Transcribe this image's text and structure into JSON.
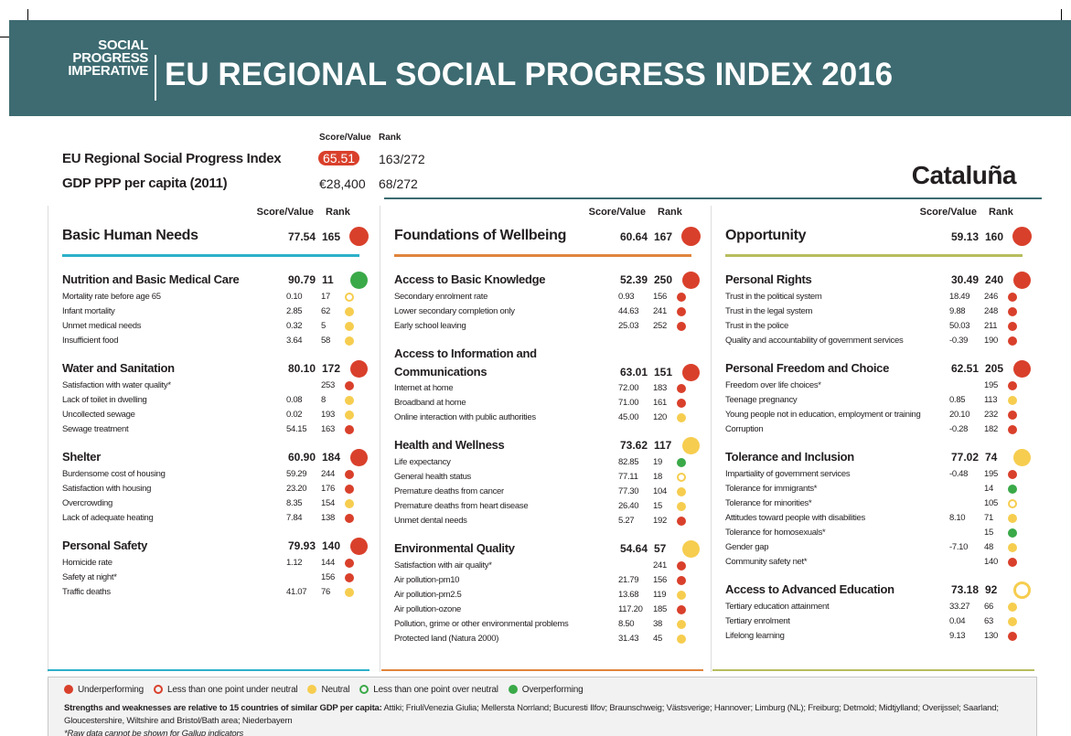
{
  "header": {
    "logo": [
      "SOCIAL",
      "PROGRESS",
      "IMPERATIVE"
    ],
    "title": "EU REGIONAL SOCIAL PROGRESS INDEX 2016"
  },
  "summary": {
    "score_label": "Score/Value",
    "rank_label": "Rank",
    "rows": [
      {
        "label": "EU Regional Social Progress Index",
        "score": "65.51",
        "rank": "163/272"
      },
      {
        "label": "GDP PPP per capita (2011)",
        "score": "€28,400",
        "rank": "68/272"
      }
    ],
    "region": "Cataluña"
  },
  "dimensions": [
    {
      "score_label": "Score/Value",
      "rank_label": "Rank",
      "name": "Basic Human Needs",
      "score": "77.54",
      "rank": "165",
      "status": "under",
      "color": "#2bb0c9",
      "components": [
        {
          "name": "Nutrition and Basic Medical Care",
          "score": "90.79",
          "rank": "11",
          "status": "over",
          "indicators": [
            {
              "name": "Mortality rate before age 65",
              "value": "0.10",
              "rank": "17",
              "status": "weak"
            },
            {
              "name": "Infant mortality",
              "value": "2.85",
              "rank": "62",
              "status": "neutral"
            },
            {
              "name": "Unmet medical needs",
              "value": "0.32",
              "rank": "5",
              "status": "neutral"
            },
            {
              "name": "Insufficient food",
              "value": "3.64",
              "rank": "58",
              "status": "neutral"
            }
          ]
        },
        {
          "name": "Water and Sanitation",
          "score": "80.10",
          "rank": "172",
          "status": "under",
          "indicators": [
            {
              "name": "Satisfaction with water quality*",
              "value": null,
              "rank": "253",
              "status": "under"
            },
            {
              "name": "Lack of toilet in dwelling",
              "value": "0.08",
              "rank": "8",
              "status": "neutral"
            },
            {
              "name": "Uncollected sewage",
              "value": "0.02",
              "rank": "193",
              "status": "neutral"
            },
            {
              "name": "Sewage treatment",
              "value": "54.15",
              "rank": "163",
              "status": "under"
            }
          ]
        },
        {
          "name": "Shelter",
          "score": "60.90",
          "rank": "184",
          "status": "under",
          "indicators": [
            {
              "name": "Burdensome cost of housing",
              "value": "59.29",
              "rank": "244",
              "status": "under"
            },
            {
              "name": "Satisfaction with housing",
              "value": "23.20",
              "rank": "176",
              "status": "under"
            },
            {
              "name": "Overcrowding",
              "value": "8.35",
              "rank": "154",
              "status": "neutral"
            },
            {
              "name": "Lack of adequate heating",
              "value": "7.84",
              "rank": "138",
              "status": "under"
            }
          ]
        },
        {
          "name": "Personal Safety",
          "score": "79.93",
          "rank": "140",
          "status": "under",
          "indicators": [
            {
              "name": "Homicide rate",
              "value": "1.12",
              "rank": "144",
              "status": "under"
            },
            {
              "name": "Safety at night*",
              "value": null,
              "rank": "156",
              "status": "under"
            },
            {
              "name": "Traffic deaths",
              "value": "41.07",
              "rank": "76",
              "status": "neutral"
            }
          ]
        }
      ]
    },
    {
      "score_label": "Score/Value",
      "rank_label": "Rank",
      "name": "Foundations of Wellbeing",
      "score": "60.64",
      "rank": "167",
      "status": "under",
      "color": "#e0843c",
      "components": [
        {
          "name": "Access to Basic Knowledge",
          "score": "52.39",
          "rank": "250",
          "status": "under",
          "indicators": [
            {
              "name": "Secondary enrolment rate",
              "value": "0.93",
              "rank": "156",
              "status": "under"
            },
            {
              "name": "Lower secondary completion only",
              "value": "44.63",
              "rank": "241",
              "status": "under"
            },
            {
              "name": "Early school leaving",
              "value": "25.03",
              "rank": "252",
              "status": "under"
            }
          ]
        },
        {
          "name": "Access to Information and Communications",
          "score": "63.01",
          "rank": "151",
          "status": "under",
          "indicators": [
            {
              "name": "Internet at home",
              "value": "72.00",
              "rank": "183",
              "status": "under"
            },
            {
              "name": "Broadband at home",
              "value": "71.00",
              "rank": "161",
              "status": "under"
            },
            {
              "name": "Online interaction with public authorities",
              "value": "45.00",
              "rank": "120",
              "status": "neutral"
            }
          ]
        },
        {
          "name": "Health and Wellness",
          "score": "73.62",
          "rank": "117",
          "status": "neutral",
          "indicators": [
            {
              "name": "Life expectancy",
              "value": "82.85",
              "rank": "19",
              "status": "over"
            },
            {
              "name": "General health status",
              "value": "77.11",
              "rank": "18",
              "status": "weak"
            },
            {
              "name": "Premature deaths from cancer",
              "value": "77.30",
              "rank": "104",
              "status": "neutral"
            },
            {
              "name": "Premature deaths from heart disease",
              "value": "26.40",
              "rank": "15",
              "status": "neutral"
            },
            {
              "name": "Unmet dental needs",
              "value": "5.27",
              "rank": "192",
              "status": "under"
            }
          ]
        },
        {
          "name": "Environmental Quality",
          "score": "54.64",
          "rank": "57",
          "status": "neutral",
          "indicators": [
            {
              "name": "Satisfaction with air quality*",
              "value": null,
              "rank": "241",
              "status": "under"
            },
            {
              "name": "Air pollution-pm10",
              "value": "21.79",
              "rank": "156",
              "status": "under"
            },
            {
              "name": "Air pollution-pm2.5",
              "value": "13.68",
              "rank": "119",
              "status": "neutral"
            },
            {
              "name": "Air pollution-ozone",
              "value": "117.20",
              "rank": "185",
              "status": "under"
            },
            {
              "name": "Pollution, grime or other environmental problems",
              "value": "8.50",
              "rank": "38",
              "status": "neutral"
            },
            {
              "name": "Protected land (Natura 2000)",
              "value": "31.43",
              "rank": "45",
              "status": "neutral"
            }
          ]
        }
      ]
    },
    {
      "score_label": "Score/Value",
      "rank_label": "Rank",
      "name": "Opportunity",
      "score": "59.13",
      "rank": "160",
      "status": "under",
      "color": "#b7bd5e",
      "components": [
        {
          "name": "Personal Rights",
          "score": "30.49",
          "rank": "240",
          "status": "under",
          "indicators": [
            {
              "name": "Trust in the political system",
              "value": "18.49",
              "rank": "246",
              "status": "under"
            },
            {
              "name": "Trust in the legal system",
              "value": "9.88",
              "rank": "248",
              "status": "under"
            },
            {
              "name": "Trust in the police",
              "value": "50.03",
              "rank": "211",
              "status": "under"
            },
            {
              "name": "Quality and accountability of government services",
              "value": "-0.39",
              "rank": "190",
              "status": "under"
            }
          ]
        },
        {
          "name": "Personal Freedom and Choice",
          "score": "62.51",
          "rank": "205",
          "status": "under",
          "indicators": [
            {
              "name": "Freedom over life choices*",
              "value": null,
              "rank": "195",
              "status": "under"
            },
            {
              "name": "Teenage pregnancy",
              "value": "0.85",
              "rank": "113",
              "status": "neutral"
            },
            {
              "name": "Young people not in education, employment or training",
              "value": "20.10",
              "rank": "232",
              "status": "under"
            },
            {
              "name": "Corruption",
              "value": "-0.28",
              "rank": "182",
              "status": "under"
            }
          ]
        },
        {
          "name": "Tolerance and Inclusion",
          "score": "77.02",
          "rank": "74",
          "status": "neutral",
          "indicators": [
            {
              "name": "Impartiality of government services",
              "value": "-0.48",
              "rank": "195",
              "status": "under"
            },
            {
              "name": "Tolerance for immigrants*",
              "value": null,
              "rank": "14",
              "status": "over"
            },
            {
              "name": "Tolerance for minorities*",
              "value": null,
              "rank": "105",
              "status": "weak"
            },
            {
              "name": "Attitudes toward people with disabilities",
              "value": "8.10",
              "rank": "71",
              "status": "neutral"
            },
            {
              "name": "Tolerance for homosexuals*",
              "value": null,
              "rank": "15",
              "status": "over"
            },
            {
              "name": "Gender gap",
              "value": "-7.10",
              "rank": "48",
              "status": "neutral"
            },
            {
              "name": "Community safety net*",
              "value": null,
              "rank": "140",
              "status": "under"
            }
          ]
        },
        {
          "name": "Access to Advanced Education",
          "score": "73.18",
          "rank": "92",
          "status": "weak",
          "indicators": [
            {
              "name": "Tertiary education attainment",
              "value": "33.27",
              "rank": "66",
              "status": "neutral"
            },
            {
              "name": "Tertiary enrolment",
              "value": "0.04",
              "rank": "63",
              "status": "neutral"
            },
            {
              "name": "Lifelong learning",
              "value": "9.13",
              "rank": "130",
              "status": "under"
            }
          ]
        }
      ]
    }
  ],
  "footer": {
    "legend": [
      {
        "label": "Underperforming",
        "status": "under"
      },
      {
        "label": "Less than one point under neutral",
        "status": "under-near"
      },
      {
        "label": "Neutral",
        "status": "neutral"
      },
      {
        "label": "Less than one point over neutral",
        "status": "over-near"
      },
      {
        "label": "Overperforming",
        "status": "over"
      }
    ],
    "note_lead": "Strengths and weaknesses are relative to 15 countries of similar GDP per capita:",
    "note_text": "Attiki; FriuliVenezia Giulia; Mellersta Norrland; Bucuresti Ilfov; Braunschweig; Västsverige; Hannover; Limburg (NL); Freiburg; Detmold; Midtjylland; Overijssel; Saarland; Gloucestershire, Wiltshire and Bristol/Bath area; Niederbayern",
    "footnote": "*Raw data cannot be shown for Gallup indicators"
  }
}
